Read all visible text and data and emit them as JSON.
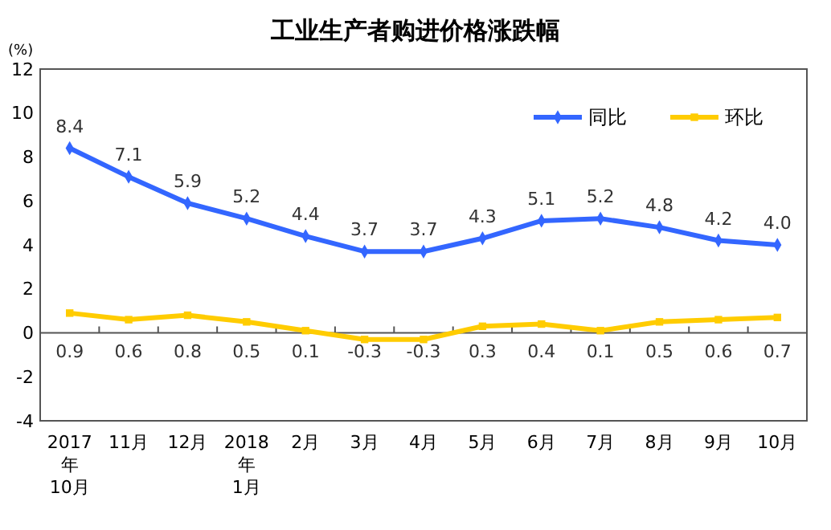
{
  "chart_data": {
    "type": "line",
    "title": "工业生产者购进价格涨跌幅",
    "ylabel": "(%)",
    "categories": [
      "2017\n年\n10月",
      "11月",
      "12月",
      "2018\n年\n1月",
      "2月",
      "3月",
      "4月",
      "5月",
      "6月",
      "7月",
      "8月",
      "9月",
      "10月"
    ],
    "series": [
      {
        "name": "同比",
        "color": "#3366ff",
        "marker": "diamond",
        "values": [
          8.4,
          7.1,
          5.9,
          5.2,
          4.4,
          3.7,
          3.7,
          4.3,
          5.1,
          5.2,
          4.8,
          4.2,
          4.0
        ],
        "value_labels": [
          "8.4",
          "7.1",
          "5.9",
          "5.2",
          "4.4",
          "3.7",
          "3.7",
          "4.3",
          "5.1",
          "5.2",
          "4.8",
          "4.2",
          "4.0"
        ]
      },
      {
        "name": "环比",
        "color": "#ffcc00",
        "marker": "square",
        "values": [
          0.9,
          0.6,
          0.8,
          0.5,
          0.1,
          -0.3,
          -0.3,
          0.3,
          0.4,
          0.1,
          0.5,
          0.6,
          0.7
        ]
      }
    ],
    "ylim": [
      -4,
      12
    ],
    "yticks": [
      -4,
      -2,
      0,
      2,
      4,
      6,
      8,
      10,
      12
    ],
    "legend": "top right",
    "data_labels": true
  }
}
